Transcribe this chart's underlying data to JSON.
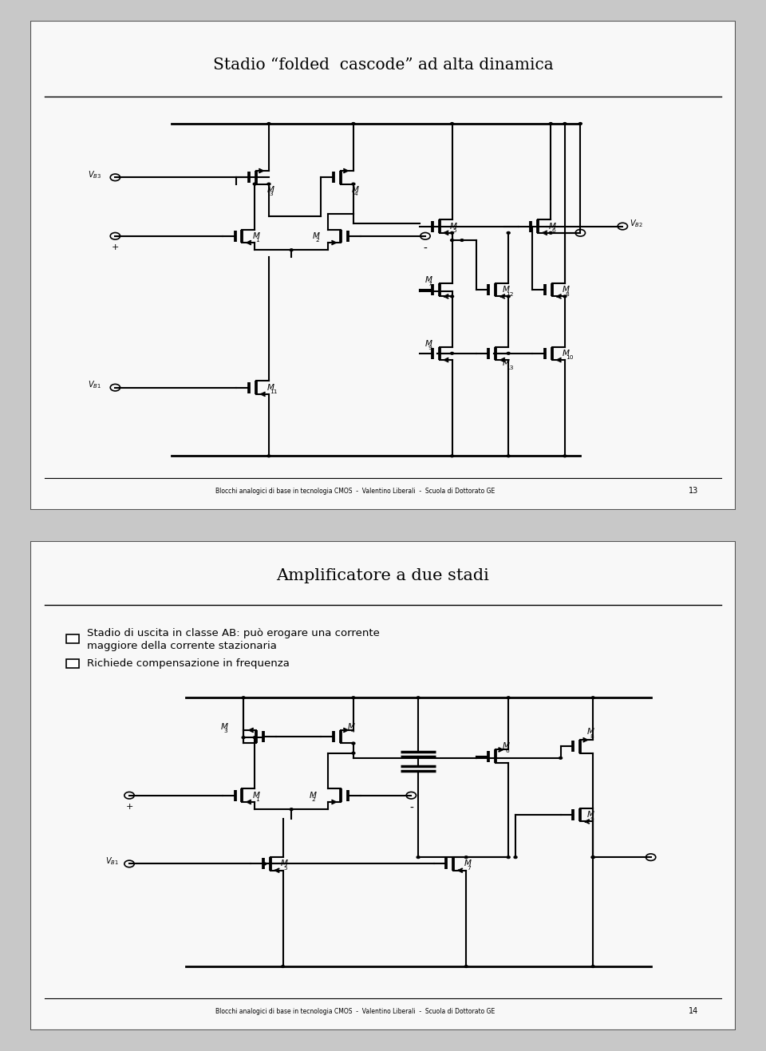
{
  "slide1_title": "Stadio “folded  cascode” ad alta dinamica",
  "slide2_title": "Amplificatore a due stadi",
  "footer": "Blocchi analogici di base in tecnologia CMOS  -  Valentino Liberali  -  Scuola di Dottorato GE",
  "page1": "13",
  "page2": "14",
  "bullet1": "Stadio di uscita in classe AB: può erogare una corrente\nmaggiore della corrente stazionaria",
  "bullet2": "Richiede compensazione in frequenza",
  "bg": "#f8f8f8",
  "outer_bg": "#c8c8c8",
  "lc": "#000000"
}
